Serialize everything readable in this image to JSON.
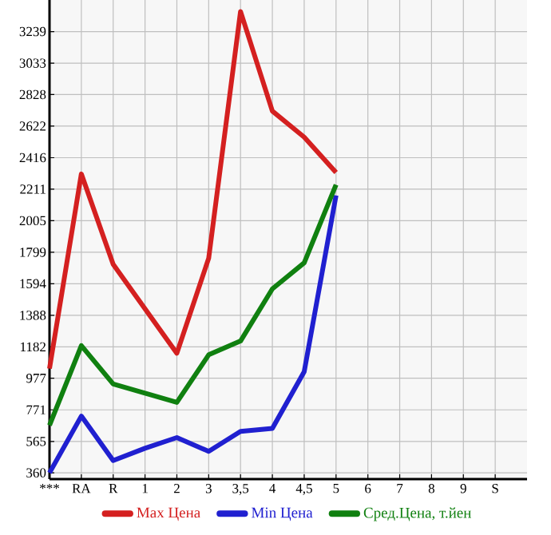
{
  "chart_data": {
    "type": "line",
    "categories": [
      "***",
      "RA",
      "R",
      "1",
      "2",
      "3",
      "3,5",
      "4",
      "4,5",
      "5",
      "6",
      "7",
      "8",
      "9",
      "S"
    ],
    "series": [
      {
        "name": "Max Цена",
        "color": "#d42020",
        "values": [
          1040,
          2310,
          1720,
          1430,
          1140,
          1760,
          3370,
          2720,
          2550,
          2320,
          null,
          null,
          null,
          null,
          null
        ]
      },
      {
        "name": "Min Цена",
        "color": "#2020d0",
        "values": [
          360,
          730,
          440,
          520,
          590,
          500,
          630,
          650,
          1020,
          2170,
          null,
          null,
          null,
          null,
          null
        ]
      },
      {
        "name": "Сред.Цена, т.йен",
        "color": "#108010",
        "values": [
          670,
          1190,
          940,
          880,
          820,
          1130,
          1220,
          1560,
          1730,
          2240,
          null,
          null,
          null,
          null,
          null
        ]
      }
    ],
    "ylim": [
      319,
      3445
    ],
    "yticks": [
      360,
      565,
      771,
      977,
      1182,
      1388,
      1594,
      1799,
      2005,
      2211,
      2416,
      2622,
      2828,
      3033,
      3239
    ],
    "grid": true,
    "legend": "bottom",
    "marker": "none",
    "line_style": "solid"
  }
}
